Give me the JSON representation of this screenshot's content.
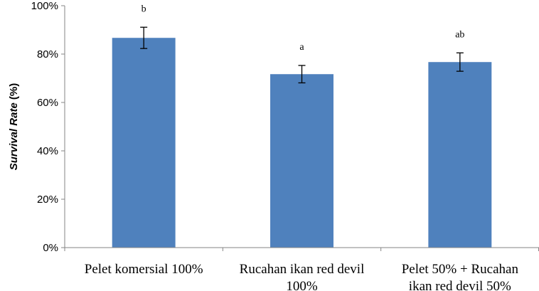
{
  "chart_data": {
    "type": "bar",
    "title": "",
    "ylabel_italic": "Survival Rate",
    "ylabel_unit": " (%)",
    "xlabel": "",
    "categories": [
      [
        "Pelet komersial 100%"
      ],
      [
        "Rucahan ikan red devil",
        "100%"
      ],
      [
        "Pelet 50% + Rucahan",
        "ikan red devil 50%"
      ]
    ],
    "values": [
      86.7,
      71.7,
      76.7
    ],
    "errors": [
      4.4,
      3.6,
      3.8
    ],
    "significance": [
      "b",
      "a",
      "ab"
    ],
    "ylim": [
      0,
      100
    ],
    "yticks": [
      0,
      20,
      40,
      60,
      80,
      100
    ],
    "ytick_labels": [
      "0%",
      "20%",
      "40%",
      "60%",
      "80%",
      "100%"
    ],
    "bar_color": "#4f81bd",
    "grid": false,
    "legend": "none"
  }
}
